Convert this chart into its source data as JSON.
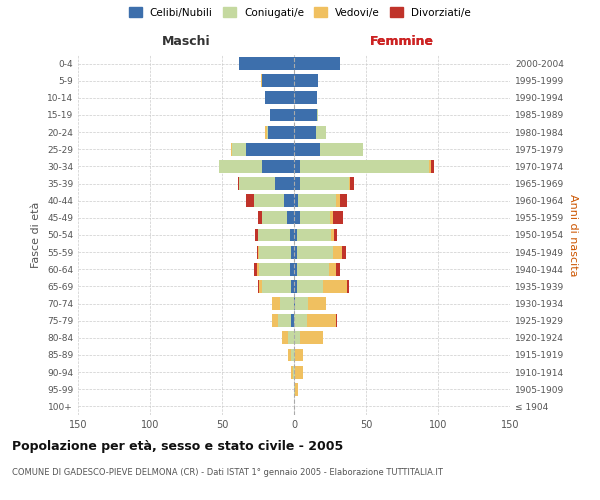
{
  "age_groups": [
    "100+",
    "95-99",
    "90-94",
    "85-89",
    "80-84",
    "75-79",
    "70-74",
    "65-69",
    "60-64",
    "55-59",
    "50-54",
    "45-49",
    "40-44",
    "35-39",
    "30-34",
    "25-29",
    "20-24",
    "15-19",
    "10-14",
    "5-9",
    "0-4"
  ],
  "birth_years": [
    "≤ 1904",
    "1905-1909",
    "1910-1914",
    "1915-1919",
    "1920-1924",
    "1925-1929",
    "1930-1934",
    "1935-1939",
    "1940-1944",
    "1945-1949",
    "1950-1954",
    "1955-1959",
    "1960-1964",
    "1965-1969",
    "1970-1974",
    "1975-1979",
    "1980-1984",
    "1985-1989",
    "1990-1994",
    "1995-1999",
    "2000-2004"
  ],
  "male": {
    "celibi": [
      0,
      0,
      0,
      0,
      0,
      2,
      0,
      2,
      3,
      2,
      3,
      5,
      7,
      13,
      22,
      33,
      18,
      17,
      20,
      22,
      38
    ],
    "coniugati": [
      0,
      0,
      1,
      2,
      4,
      9,
      10,
      20,
      21,
      22,
      22,
      17,
      21,
      25,
      30,
      10,
      1,
      0,
      0,
      0,
      0
    ],
    "vedovi": [
      0,
      0,
      1,
      2,
      4,
      4,
      5,
      2,
      2,
      1,
      0,
      0,
      0,
      0,
      0,
      1,
      1,
      0,
      0,
      1,
      0
    ],
    "divorziati": [
      0,
      0,
      0,
      0,
      0,
      0,
      0,
      1,
      2,
      1,
      2,
      3,
      5,
      1,
      0,
      0,
      0,
      0,
      0,
      0,
      0
    ]
  },
  "female": {
    "nubili": [
      0,
      0,
      0,
      0,
      0,
      0,
      1,
      2,
      2,
      2,
      2,
      4,
      3,
      4,
      4,
      18,
      15,
      16,
      16,
      17,
      32
    ],
    "coniugate": [
      0,
      1,
      1,
      1,
      4,
      9,
      9,
      18,
      22,
      25,
      24,
      21,
      26,
      34,
      90,
      30,
      7,
      1,
      0,
      0,
      0
    ],
    "vedove": [
      0,
      2,
      5,
      5,
      16,
      20,
      12,
      17,
      5,
      6,
      2,
      2,
      3,
      1,
      1,
      0,
      0,
      0,
      0,
      0,
      0
    ],
    "divorziate": [
      0,
      0,
      0,
      0,
      0,
      1,
      0,
      1,
      3,
      3,
      2,
      7,
      5,
      3,
      2,
      0,
      0,
      0,
      0,
      0,
      0
    ]
  },
  "colors": {
    "celibi_nubili": "#3d6fac",
    "coniugati": "#c5d9a0",
    "vedovi": "#f0c060",
    "divorziati": "#c0332a"
  },
  "xlim": 150,
  "title": "Popolazione per età, sesso e stato civile - 2005",
  "subtitle": "COMUNE DI GADESCO-PIEVE DELMONA (CR) - Dati ISTAT 1° gennaio 2005 - Elaborazione TUTTITALIA.IT",
  "ylabel_left": "Fasce di età",
  "ylabel_right": "Anni di nascita",
  "xlabel_left": "Maschi",
  "xlabel_right": "Femmine",
  "bg_color": "#ffffff",
  "grid_color": "#cccccc"
}
